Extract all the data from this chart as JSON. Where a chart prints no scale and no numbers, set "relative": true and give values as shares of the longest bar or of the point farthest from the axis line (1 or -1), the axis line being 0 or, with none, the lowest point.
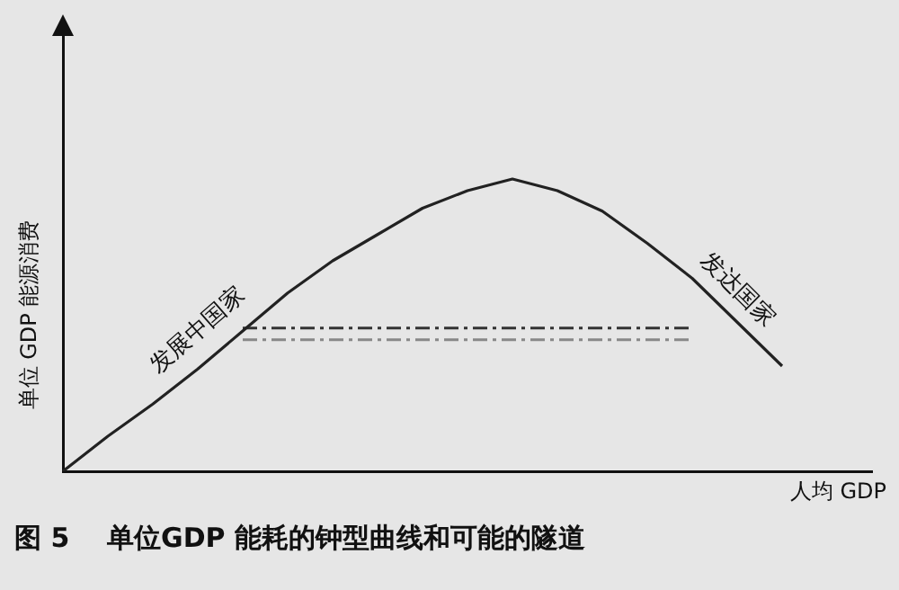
{
  "chart_data": {
    "type": "line",
    "relative": true,
    "title": "图 5    单位GDP 能耗的钟型曲线和可能的隧道",
    "xlabel": "人均 GDP",
    "ylabel": "单位 GDP 能源消费",
    "categories": [
      null,
      null,
      null,
      null,
      null,
      null,
      null,
      null,
      null,
      null,
      null,
      null,
      null,
      null,
      null,
      null,
      null,
      null,
      null
    ],
    "series": [
      {
        "color": "#222222",
        "values": [
          0,
          0.12,
          0.23,
          0.35,
          0.48,
          0.61,
          0.72,
          0.81,
          0.9,
          0.96,
          1,
          0.96,
          0.89,
          0.78,
          0.66,
          0.51,
          0.36,
          null,
          null
        ]
      },
      {
        "color": "#333333",
        "line_style": "dashed",
        "values": [
          null,
          null,
          null,
          null,
          0.49,
          0.49,
          0.49,
          0.49,
          0.49,
          0.49,
          0.49,
          0.49,
          0.49,
          0.49,
          0.49,
          null,
          null,
          null,
          null
        ]
      },
      {
        "color": "#888888",
        "line_style": "dashed",
        "values": [
          null,
          null,
          null,
          null,
          0.45,
          0.45,
          0.45,
          0.45,
          0.45,
          0.45,
          0.45,
          0.45,
          0.45,
          0.45,
          0.45,
          null,
          null,
          null,
          null
        ]
      }
    ],
    "annotations": [
      "发展中国家",
      "发达国家"
    ],
    "tick_labels": false,
    "grid": false,
    "legend": false,
    "marker": "none"
  }
}
